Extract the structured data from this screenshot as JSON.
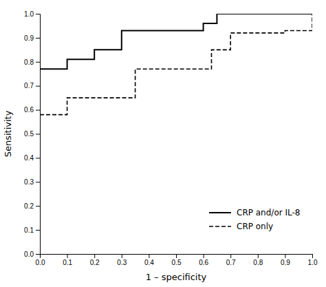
{
  "chart_data": {
    "type": "step",
    "xlabel": "1 – specificity",
    "ylabel": "Sensitivity",
    "xlim": [
      0.0,
      1.0
    ],
    "ylim": [
      0.0,
      1.0
    ],
    "xticks": [
      {
        "value": 0.0,
        "label": "0.0"
      },
      0.1,
      0.2,
      0.3,
      0.4,
      0.5,
      0.6,
      0.7,
      0.8,
      0.9,
      {
        "value": 1.0,
        "label": "1.0"
      }
    ],
    "yticks": [
      {
        "value": 0.0,
        "label": "0.0"
      },
      0.1,
      0.2,
      0.3,
      0.4,
      0.5,
      0.6,
      0.7,
      0.8,
      0.9,
      {
        "value": 1.0,
        "label": "1.0"
      }
    ],
    "grid": false,
    "legend": "lower right",
    "series": [
      {
        "name": "CRP and/or IL-8",
        "color": "#000000",
        "line_style": "solid",
        "x": [
          0.0,
          0.1,
          0.2,
          0.3,
          0.6,
          0.65,
          1.0
        ],
        "values": [
          0.77,
          0.81,
          0.85,
          0.93,
          0.96,
          1.0,
          1.0
        ]
      },
      {
        "name": "CRP only",
        "color": "#000000",
        "line_style": "dashed",
        "x": [
          0.0,
          0.1,
          0.3,
          0.35,
          0.6,
          0.63,
          0.7,
          0.9,
          1.0
        ],
        "values": [
          0.58,
          0.65,
          0.65,
          0.77,
          0.77,
          0.85,
          0.92,
          0.93,
          1.0
        ]
      }
    ]
  }
}
